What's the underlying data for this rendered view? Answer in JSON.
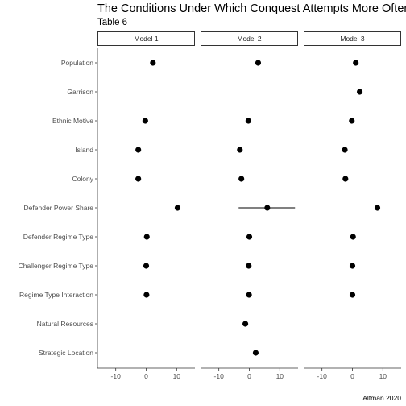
{
  "chart_data": {
    "type": "scatter",
    "title": "The Conditions Under Which Conquest Attempts More Often Lead to Conquest",
    "subtitle": "Table 6",
    "caption": "Altman 2020",
    "xlim": [
      -16,
      16
    ],
    "x_ticks": [
      -10,
      0,
      10
    ],
    "x_tick_labels": [
      "-10",
      "0",
      "10"
    ],
    "grid": false,
    "categories": [
      "Population",
      "Garrison",
      "Ethnic Motive",
      "Island",
      "Colony",
      "Defender Power Share",
      "Defender Regime Type",
      "Challenger Regime Type",
      "Regime Type Interaction",
      "Natural Resources",
      "Strategic Location"
    ],
    "panels": [
      {
        "name": "Model 1",
        "points": [
          {
            "category": "Population",
            "x": 2.2
          },
          {
            "category": "Ethnic Motive",
            "x": -0.3
          },
          {
            "category": "Island",
            "x": -2.6
          },
          {
            "category": "Colony",
            "x": -2.6,
            "low": -3.6,
            "high": -1.8
          },
          {
            "category": "Defender Power Share",
            "x": 10.3
          },
          {
            "category": "Defender Regime Type",
            "x": 0.2
          },
          {
            "category": "Challenger Regime Type",
            "x": 0.0
          },
          {
            "category": "Regime Type Interaction",
            "x": 0.1
          }
        ]
      },
      {
        "name": "Model 2",
        "points": [
          {
            "category": "Population",
            "x": 2.9
          },
          {
            "category": "Ethnic Motive",
            "x": -0.3
          },
          {
            "category": "Island",
            "x": -3.1
          },
          {
            "category": "Colony",
            "x": -2.6,
            "low": -3.3,
            "high": -1.9
          },
          {
            "category": "Defender Power Share",
            "x": 5.9,
            "low": -3.5,
            "high": 15.0
          },
          {
            "category": "Defender Regime Type",
            "x": 0.0
          },
          {
            "category": "Challenger Regime Type",
            "x": -0.2
          },
          {
            "category": "Regime Type Interaction",
            "x": -0.1
          },
          {
            "category": "Natural Resources",
            "x": -1.3
          },
          {
            "category": "Strategic Location",
            "x": 2.1
          }
        ]
      },
      {
        "name": "Model 3",
        "points": [
          {
            "category": "Population",
            "x": 1.1
          },
          {
            "category": "Garrison",
            "x": 2.4
          },
          {
            "category": "Ethnic Motive",
            "x": -0.2
          },
          {
            "category": "Island",
            "x": -2.5
          },
          {
            "category": "Colony",
            "x": -2.3
          },
          {
            "category": "Defender Power Share",
            "x": 8.2
          },
          {
            "category": "Defender Regime Type",
            "x": 0.2
          },
          {
            "category": "Challenger Regime Type",
            "x": 0.0
          },
          {
            "category": "Regime Type Interaction",
            "x": 0.0
          }
        ]
      }
    ],
    "colors": {
      "point": "#000000",
      "axis": "#333333",
      "strip_border": "#333333"
    }
  }
}
